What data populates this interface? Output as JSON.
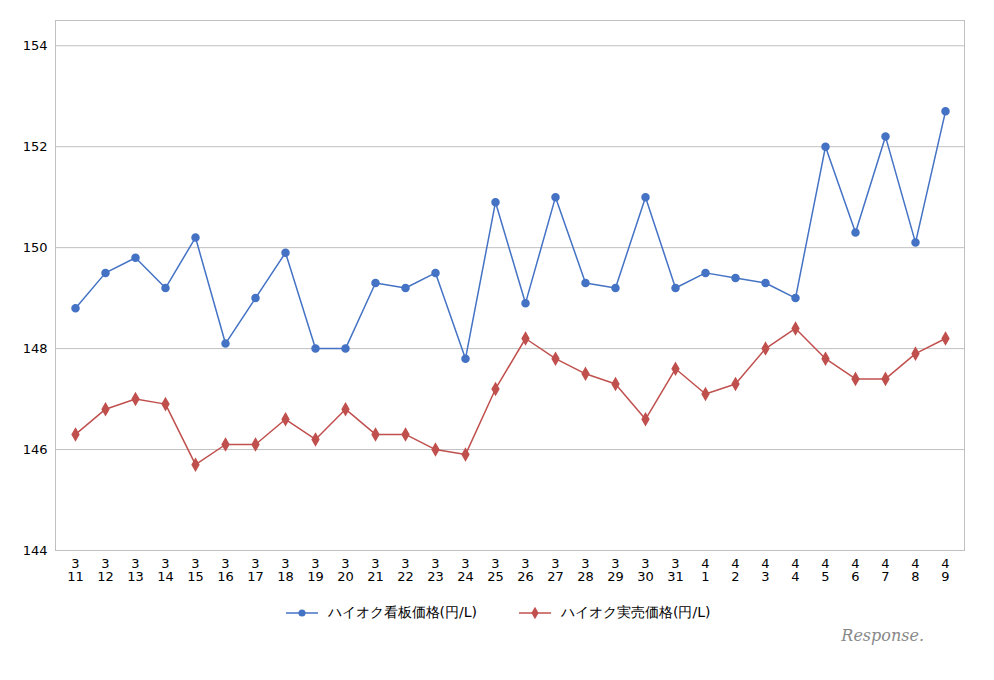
{
  "chart_data": {
    "type": "line",
    "categories": [
      "3\n11",
      "3\n12",
      "3\n13",
      "3\n14",
      "3\n15",
      "3\n16",
      "3\n17",
      "3\n18",
      "3\n19",
      "3\n20",
      "3\n21",
      "3\n22",
      "3\n23",
      "3\n24",
      "3\n25",
      "3\n26",
      "3\n27",
      "3\n28",
      "3\n29",
      "3\n30",
      "3\n31",
      "4\n1",
      "4\n2",
      "4\n3",
      "4\n4",
      "4\n5",
      "4\n6",
      "4\n7",
      "4\n8",
      "4\n9"
    ],
    "series": [
      {
        "name": "ハイオク看板価格(円/L)",
        "color": "#4472C4",
        "marker": "circle",
        "values": [
          148.8,
          149.5,
          149.8,
          149.2,
          150.2,
          148.1,
          149.0,
          149.9,
          148.0,
          148.0,
          149.3,
          149.2,
          149.5,
          147.8,
          150.9,
          148.9,
          151.0,
          149.3,
          149.2,
          151.0,
          149.2,
          149.5,
          149.4,
          149.3,
          149.0,
          152.0,
          150.3,
          152.2,
          150.1,
          152.7
        ]
      },
      {
        "name": "ハイオク実売価格(円/L)",
        "color": "#C0504D",
        "marker": "diamond",
        "values": [
          146.3,
          146.8,
          147.0,
          146.9,
          145.7,
          146.1,
          146.1,
          146.6,
          146.2,
          146.8,
          146.3,
          146.3,
          146.0,
          145.9,
          147.2,
          148.2,
          147.8,
          147.5,
          147.3,
          146.6,
          147.6,
          147.1,
          147.3,
          148.0,
          148.4,
          147.8,
          147.4,
          147.4,
          147.9,
          148.2
        ]
      }
    ],
    "ylim": [
      144,
      154.5
    ],
    "yticks": [
      144,
      146,
      148,
      150,
      152,
      154
    ],
    "grid": true,
    "legend": "bottom",
    "annotations": [
      "Response."
    ]
  }
}
